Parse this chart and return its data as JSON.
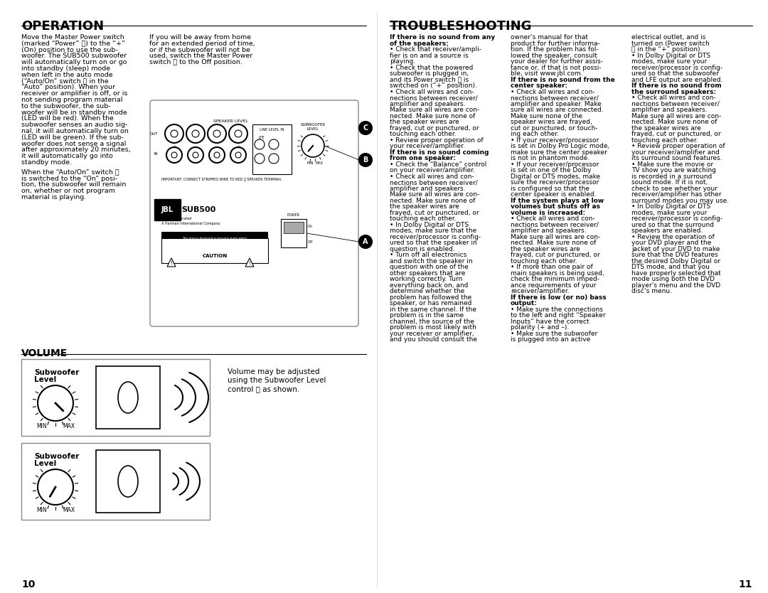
{
  "bg_color": "#ffffff",
  "text_color": "#000000",
  "page_width": 10.8,
  "page_height": 8.34,
  "left_header": "OPERATION",
  "right_header": "TROUBLESHOOTING",
  "op_col1_lines": [
    "Move the Master Power switch",
    "(marked “Power” Ⓐ) to the “+”",
    "(On) position to use the sub-",
    "woofer. The SUB500 subwoofer",
    "will automatically turn on or go",
    "into standby (sleep) mode",
    "when left in the auto mode",
    "(“Auto/On” switch Ⓒ in the",
    "“Auto” position). When your",
    "receiver or amplifier is off, or is",
    "not sending program material",
    "to the subwoofer, the sub-",
    "woofer will be in standby mode",
    "(LED will be red). When the",
    "subwoofer senses an audio sig-",
    "nal, it will automatically turn on",
    "(LED will be green). If the sub-",
    "woofer does not sense a signal",
    "after approximately 20 minutes,",
    "it will automatically go into",
    "standby mode.",
    "",
    "When the “Auto/On” switch Ⓒ",
    "is switched to the “On” posi-",
    "tion, the subwoofer will remain",
    "on, whether or not program",
    "material is playing."
  ],
  "op_col2_lines": [
    "If you will be away from home",
    "for an extended period of time,",
    "or if the subwoofer will not be",
    "used, switch the Master Power",
    "switch Ⓐ to the Off position."
  ],
  "volume_header": "VOLUME",
  "volume_lines": [
    "Volume may be adjusted",
    "using the Subwoofer Level",
    "control Ⓑ as shown."
  ],
  "sub_label1": "Subwoofer",
  "sub_label2": "Level",
  "min_label": "MIN",
  "max_label": "MAX",
  "ts_col1_lines": [
    [
      "bold",
      "If there is no sound from any"
    ],
    [
      "bold",
      "of the speakers:"
    ],
    [
      "normal",
      "• Check that receiver/ampli-"
    ],
    [
      "normal",
      "fier is on and a source is"
    ],
    [
      "normal",
      "playing."
    ],
    [
      "normal",
      "• Check that the powered"
    ],
    [
      "normal",
      "subwoofer is plugged in,"
    ],
    [
      "normal",
      "and its Power switch Ⓐ is"
    ],
    [
      "normal",
      "switched on (“+” position)."
    ],
    [
      "normal",
      "• Check all wires and con-"
    ],
    [
      "normal",
      "nections between receiver/"
    ],
    [
      "normal",
      "amplifier and speakers."
    ],
    [
      "normal",
      "Make sure all wires are con-"
    ],
    [
      "normal",
      "nected. Make sure none of"
    ],
    [
      "normal",
      "the speaker wires are"
    ],
    [
      "normal",
      "frayed, cut or punctured, or"
    ],
    [
      "normal",
      "touching each other."
    ],
    [
      "normal",
      "• Review proper operation of"
    ],
    [
      "normal",
      "your receiver/amplifier."
    ],
    [
      "bold",
      "If there is no sound coming"
    ],
    [
      "bold",
      "from one speaker:"
    ],
    [
      "normal",
      "• Check the “Balance” control"
    ],
    [
      "normal",
      "on your receiver/amplifier."
    ],
    [
      "normal",
      "• Check all wires and con-"
    ],
    [
      "normal",
      "nections between receiver/"
    ],
    [
      "normal",
      "amplifier and speakers."
    ],
    [
      "normal",
      "Make sure all wires are con-"
    ],
    [
      "normal",
      "nected. Make sure none of"
    ],
    [
      "normal",
      "the speaker wires are"
    ],
    [
      "normal",
      "frayed, cut or punctured, or"
    ],
    [
      "normal",
      "touching each other."
    ],
    [
      "normal",
      "• In Dolby Digital or DTS"
    ],
    [
      "normal",
      "modes, make sure that the"
    ],
    [
      "normal",
      "receiver/processor is config-"
    ],
    [
      "normal",
      "ured so that the speaker in"
    ],
    [
      "normal",
      "question is enabled."
    ],
    [
      "normal",
      "• Turn off all electronics"
    ],
    [
      "normal",
      "and switch the speaker in"
    ],
    [
      "normal",
      "question with one of the"
    ],
    [
      "normal",
      "other speakers that are"
    ],
    [
      "normal",
      "working correctly. Turn"
    ],
    [
      "normal",
      "everything back on, and"
    ],
    [
      "normal",
      "determine whether the"
    ],
    [
      "normal",
      "problem has followed the"
    ],
    [
      "normal",
      "speaker, or has remained"
    ],
    [
      "normal",
      "in the same channel. If the"
    ],
    [
      "normal",
      "problem is in the same"
    ],
    [
      "normal",
      "channel, the source of the"
    ],
    [
      "normal",
      "problem is most likely with"
    ],
    [
      "normal",
      "your receiver or amplifier,"
    ],
    [
      "normal",
      "and you should consult the"
    ]
  ],
  "ts_col2_lines": [
    [
      "normal",
      "owner’s manual for that"
    ],
    [
      "normal",
      "product for further informa-"
    ],
    [
      "normal",
      "tion. If the problem has fol-"
    ],
    [
      "normal",
      "lowed the speaker, consult"
    ],
    [
      "normal",
      "your dealer for further assis-"
    ],
    [
      "normal",
      "tance or, if that is not possi-"
    ],
    [
      "normal",
      "ble, visit www.jbl.com."
    ],
    [
      "bold",
      "If there is no sound from the"
    ],
    [
      "bold",
      "center speaker:"
    ],
    [
      "normal",
      "• Check all wires and con-"
    ],
    [
      "normal",
      "nections between receiver/"
    ],
    [
      "normal",
      "amplifier and speaker. Make"
    ],
    [
      "normal",
      "sure all wires are connected."
    ],
    [
      "normal",
      "Make sure none of the"
    ],
    [
      "normal",
      "speaker wires are frayed,"
    ],
    [
      "normal",
      "cut or punctured, or touch-"
    ],
    [
      "normal",
      "ing each other."
    ],
    [
      "normal",
      "• If your receiver/processor"
    ],
    [
      "normal",
      "is set in Dolby Pro Logic mode,"
    ],
    [
      "normal",
      "make sure the center speaker"
    ],
    [
      "normal",
      "is not in phantom mode."
    ],
    [
      "normal",
      "• If your receiver/processor"
    ],
    [
      "normal",
      "is set in one of the Dolby"
    ],
    [
      "normal",
      "Digital or DTS modes, make"
    ],
    [
      "normal",
      "sure the receiver/processor"
    ],
    [
      "normal",
      "is configured so that the"
    ],
    [
      "normal",
      "center speaker is enabled."
    ],
    [
      "bold",
      "If the system plays at low"
    ],
    [
      "bold",
      "volumes but shuts off as"
    ],
    [
      "bold",
      "volume is increased:"
    ],
    [
      "normal",
      "• Check all wires and con-"
    ],
    [
      "normal",
      "nections between receiver/"
    ],
    [
      "normal",
      "amplifier and speakers."
    ],
    [
      "normal",
      "Make sure all wires are con-"
    ],
    [
      "normal",
      "nected. Make sure none of"
    ],
    [
      "normal",
      "the speaker wires are"
    ],
    [
      "normal",
      "frayed, cut or punctured, or"
    ],
    [
      "normal",
      "touching each other."
    ],
    [
      "normal",
      "• If more than one pair of"
    ],
    [
      "normal",
      "main speakers is being used,"
    ],
    [
      "normal",
      "check the minimum imped-"
    ],
    [
      "normal",
      "ance requirements of your"
    ],
    [
      "normal",
      "receiver/amplifier."
    ],
    [
      "bold",
      "If there is low (or no) bass"
    ],
    [
      "bold",
      "output:"
    ],
    [
      "normal",
      "• Make sure the connections"
    ],
    [
      "normal",
      "to the left and right “Speaker"
    ],
    [
      "normal",
      "Inputs” have the correct"
    ],
    [
      "normal",
      "polarity (+ and –)."
    ],
    [
      "normal",
      "• Make sure the subwoofer"
    ],
    [
      "normal",
      "is plugged into an active"
    ]
  ],
  "ts_col3_lines": [
    [
      "normal",
      "electrical outlet, and is"
    ],
    [
      "normal",
      "turned on (Power switch"
    ],
    [
      "normal",
      "Ⓐ in the “+” position)."
    ],
    [
      "normal",
      "• In Dolby Digital or DTS"
    ],
    [
      "normal",
      "modes, make sure your"
    ],
    [
      "normal",
      "receiver/processor is config-"
    ],
    [
      "normal",
      "ured so that the subwoofer"
    ],
    [
      "normal",
      "and LFE output are enabled."
    ],
    [
      "bold",
      "If there is no sound from"
    ],
    [
      "bold",
      "the surround speakers:"
    ],
    [
      "normal",
      "• Check all wires and con-"
    ],
    [
      "normal",
      "nections between receiver/"
    ],
    [
      "normal",
      "amplifier and speakers."
    ],
    [
      "normal",
      "Make sure all wires are con-"
    ],
    [
      "normal",
      "nected. Make sure none of"
    ],
    [
      "normal",
      "the speaker wires are"
    ],
    [
      "normal",
      "frayed, cut or punctured, or"
    ],
    [
      "normal",
      "touching each other."
    ],
    [
      "normal",
      "• Review proper operation of"
    ],
    [
      "normal",
      "your receiver/amplifier and"
    ],
    [
      "normal",
      "its surround sound features."
    ],
    [
      "normal",
      "• Make sure the movie or"
    ],
    [
      "normal",
      "TV show you are watching"
    ],
    [
      "normal",
      "is recorded in a surround"
    ],
    [
      "normal",
      "sound mode. If it is not,"
    ],
    [
      "normal",
      "check to see whether your"
    ],
    [
      "normal",
      "receiver/amplifier has other"
    ],
    [
      "normal",
      "surround modes you may use."
    ],
    [
      "normal",
      "• In Dolby Digital or DTS"
    ],
    [
      "normal",
      "modes, make sure your"
    ],
    [
      "normal",
      "receiver/processor is config-"
    ],
    [
      "normal",
      "ured so that the surround"
    ],
    [
      "normal",
      "speakers are enabled."
    ],
    [
      "normal",
      "• Review the operation of"
    ],
    [
      "normal",
      "your DVD player and the"
    ],
    [
      "normal",
      "jacket of your DVD to make"
    ],
    [
      "normal",
      "sure that the DVD features"
    ],
    [
      "normal",
      "the desired Dolby Digital or"
    ],
    [
      "normal",
      "DTS mode, and that you"
    ],
    [
      "normal",
      "have properly selected that"
    ],
    [
      "normal",
      "mode using both the DVD"
    ],
    [
      "normal",
      "player’s menu and the DVD"
    ],
    [
      "normal",
      "disc’s menu."
    ]
  ],
  "page_left": "10",
  "page_right": "11"
}
